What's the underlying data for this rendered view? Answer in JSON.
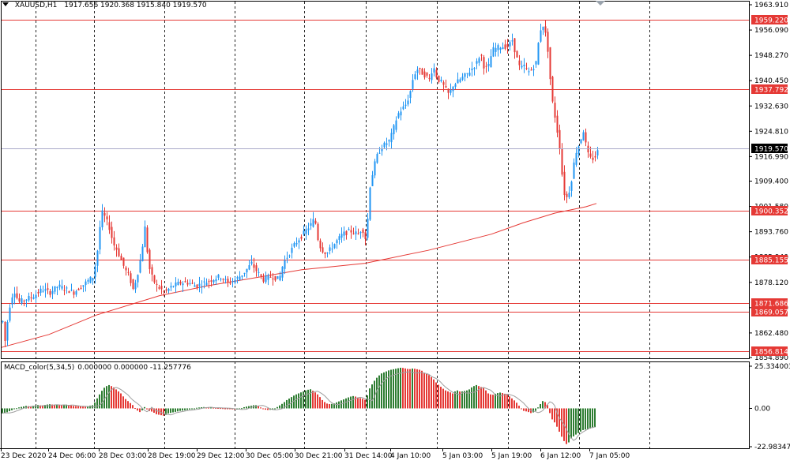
{
  "header": {
    "symbol": "XAUUSD,H1",
    "values": "1917.656 1920.368 1915.840 1919.570"
  },
  "macd": {
    "name": "MACD_color(5,34,5)",
    "values": "0.000000 0.000000 -11.257776",
    "axis_ticks": [
      "25.334003",
      "0.00",
      "-22.983471"
    ]
  },
  "colors": {
    "bull": "#2196f3",
    "bear": "#e53935",
    "level": "#e53935",
    "ma": "#e53935",
    "current_price_line": "#a9a9c8",
    "current_price_tag_bg": "#000000",
    "macd_up": "#2e7d32",
    "macd_down": "#e53935",
    "macd_signal": "#9e9e9e",
    "grid": "#000000"
  },
  "chart_data": {
    "type": "candlestick",
    "symbol": "XAUUSD",
    "timeframe": "H1",
    "ylim": [
      1854.89,
      1963.91
    ],
    "price_ticks": [
      "1963.910",
      "1956.090",
      "1948.270",
      "1940.450",
      "1932.630",
      "1924.810",
      "1916.990",
      "1909.400",
      "1901.580",
      "1893.760",
      "1885.940",
      "1878.120",
      "1870.300",
      "1862.480",
      "1854.890"
    ],
    "x_labels": [
      "23 Dec 2020",
      "24 Dec 06:00",
      "28 Dec 03:00",
      "28 Dec 19:00",
      "29 Dec 12:00",
      "30 Dec 05:00",
      "30 Dec 21:00",
      "31 Dec 14:00",
      "4 Jan 10:00",
      "5 Jan 03:00",
      "5 Jan 19:00",
      "6 Jan 12:00",
      "7 Jan 05:00"
    ],
    "horizontal_levels": [
      {
        "label": "1959.220",
        "value": 1959.22
      },
      {
        "label": "1937.792",
        "value": 1937.792
      },
      {
        "label": "1900.352",
        "value": 1900.352
      },
      {
        "label": "1885.155",
        "value": 1885.155
      },
      {
        "label": "1871.686",
        "value": 1871.686
      },
      {
        "label": "1869.057",
        "value": 1869.057
      },
      {
        "label": "1856.814",
        "value": 1856.814
      }
    ],
    "current_price": {
      "label": "1919.570",
      "value": 1919.57
    },
    "moving_average": {
      "color": "red",
      "points": [
        [
          0,
          1858.0
        ],
        [
          60,
          1862.0
        ],
        [
          120,
          1868.0
        ],
        [
          200,
          1874.0
        ],
        [
          260,
          1877.0
        ],
        [
          320,
          1879.5
        ],
        [
          380,
          1882.0
        ],
        [
          420,
          1883.0
        ],
        [
          460,
          1884.0
        ],
        [
          540,
          1888.0
        ],
        [
          620,
          1893.0
        ],
        [
          660,
          1896.5
        ],
        [
          700,
          1899.5
        ],
        [
          740,
          1901.5
        ],
        [
          753,
          1902.5
        ]
      ]
    },
    "close_path": [
      [
        0,
        1866
      ],
      [
        3,
        1860
      ],
      [
        8,
        1870
      ],
      [
        14,
        1876
      ],
      [
        20,
        1872
      ],
      [
        30,
        1873
      ],
      [
        40,
        1874
      ],
      [
        50,
        1876
      ],
      [
        60,
        1875
      ],
      [
        70,
        1877
      ],
      [
        80,
        1876
      ],
      [
        90,
        1875
      ],
      [
        100,
        1877
      ],
      [
        110,
        1879
      ],
      [
        115,
        1880
      ],
      [
        120,
        1888
      ],
      [
        125,
        1900
      ],
      [
        130,
        1898
      ],
      [
        135,
        1895
      ],
      [
        140,
        1890
      ],
      [
        145,
        1888
      ],
      [
        150,
        1885
      ],
      [
        155,
        1882
      ],
      [
        160,
        1880
      ],
      [
        165,
        1876
      ],
      [
        170,
        1880
      ],
      [
        175,
        1886
      ],
      [
        180,
        1895
      ],
      [
        185,
        1883
      ],
      [
        190,
        1879
      ],
      [
        195,
        1877
      ],
      [
        200,
        1876
      ],
      [
        205,
        1875
      ],
      [
        215,
        1877
      ],
      [
        225,
        1878
      ],
      [
        235,
        1878
      ],
      [
        245,
        1877
      ],
      [
        255,
        1878
      ],
      [
        265,
        1879
      ],
      [
        275,
        1880
      ],
      [
        285,
        1878
      ],
      [
        295,
        1879
      ],
      [
        305,
        1881
      ],
      [
        315,
        1884
      ],
      [
        320,
        1882
      ],
      [
        330,
        1879
      ],
      [
        340,
        1880
      ],
      [
        350,
        1879
      ],
      [
        355,
        1884
      ],
      [
        360,
        1886
      ],
      [
        370,
        1890
      ],
      [
        380,
        1893
      ],
      [
        390,
        1896
      ],
      [
        395,
        1898
      ],
      [
        400,
        1890
      ],
      [
        405,
        1888
      ],
      [
        410,
        1887
      ],
      [
        420,
        1890
      ],
      [
        430,
        1893
      ],
      [
        440,
        1894
      ],
      [
        450,
        1893
      ],
      [
        455,
        1895
      ],
      [
        460,
        1891
      ],
      [
        465,
        1908
      ],
      [
        470,
        1914
      ],
      [
        475,
        1918
      ],
      [
        480,
        1920
      ],
      [
        490,
        1922
      ],
      [
        495,
        1926
      ],
      [
        500,
        1930
      ],
      [
        510,
        1933
      ],
      [
        515,
        1936
      ],
      [
        520,
        1942
      ],
      [
        525,
        1944
      ],
      [
        530,
        1943
      ],
      [
        540,
        1941
      ],
      [
        545,
        1945
      ],
      [
        550,
        1941
      ],
      [
        555,
        1940
      ],
      [
        560,
        1938
      ],
      [
        565,
        1936
      ],
      [
        570,
        1939
      ],
      [
        580,
        1941
      ],
      [
        590,
        1943
      ],
      [
        600,
        1946
      ],
      [
        605,
        1949
      ],
      [
        610,
        1944
      ],
      [
        615,
        1945
      ],
      [
        620,
        1950
      ],
      [
        630,
        1951
      ],
      [
        640,
        1951
      ],
      [
        645,
        1953
      ],
      [
        650,
        1948
      ],
      [
        655,
        1944
      ],
      [
        660,
        1945
      ],
      [
        665,
        1943
      ],
      [
        670,
        1944
      ],
      [
        675,
        1946
      ],
      [
        680,
        1956
      ],
      [
        685,
        1958
      ],
      [
        690,
        1950
      ],
      [
        695,
        1935
      ],
      [
        700,
        1928
      ],
      [
        705,
        1920
      ],
      [
        710,
        1906
      ],
      [
        715,
        1904
      ],
      [
        720,
        1910
      ],
      [
        725,
        1918
      ],
      [
        730,
        1921
      ],
      [
        735,
        1925
      ],
      [
        740,
        1918
      ],
      [
        745,
        1916
      ],
      [
        750,
        1917
      ],
      [
        755,
        1919.57
      ]
    ],
    "macd_bars": [
      [
        0,
        -3
      ],
      [
        5,
        -2.5
      ],
      [
        10,
        -1.5
      ],
      [
        15,
        -0.5
      ],
      [
        20,
        0.5
      ],
      [
        25,
        1
      ],
      [
        30,
        1.5
      ],
      [
        35,
        1.2
      ],
      [
        40,
        1.6
      ],
      [
        45,
        2
      ],
      [
        50,
        1.7
      ],
      [
        55,
        2.2
      ],
      [
        60,
        2.5
      ],
      [
        65,
        2.2
      ],
      [
        70,
        2.4
      ],
      [
        75,
        2
      ],
      [
        80,
        2.3
      ],
      [
        85,
        2
      ],
      [
        90,
        1.5
      ],
      [
        95,
        1.4
      ],
      [
        100,
        1.2
      ],
      [
        105,
        1
      ],
      [
        110,
        1.5
      ],
      [
        115,
        2
      ],
      [
        120,
        6
      ],
      [
        125,
        10
      ],
      [
        130,
        13
      ],
      [
        135,
        14
      ],
      [
        140,
        13
      ],
      [
        145,
        11
      ],
      [
        150,
        9
      ],
      [
        155,
        6
      ],
      [
        160,
        4
      ],
      [
        165,
        2
      ],
      [
        170,
        -1
      ],
      [
        175,
        -2.5
      ],
      [
        180,
        0.8
      ],
      [
        185,
        -1.5
      ],
      [
        190,
        -2
      ],
      [
        195,
        -3.5
      ],
      [
        200,
        -4
      ],
      [
        205,
        -4.5
      ],
      [
        210,
        -3
      ],
      [
        215,
        -2.5
      ],
      [
        220,
        -2
      ],
      [
        225,
        -1.5
      ],
      [
        230,
        -1.2
      ],
      [
        235,
        -0.8
      ],
      [
        240,
        -0.5
      ],
      [
        245,
        0.3
      ],
      [
        250,
        0.6
      ],
      [
        255,
        0.8
      ],
      [
        260,
        0.4
      ],
      [
        265,
        0.5
      ],
      [
        270,
        0.3
      ],
      [
        275,
        0.2
      ],
      [
        280,
        0.1
      ],
      [
        285,
        -0.2
      ],
      [
        290,
        -0.5
      ],
      [
        295,
        -0.8
      ],
      [
        300,
        -0.6
      ],
      [
        305,
        0.6
      ],
      [
        310,
        1.2
      ],
      [
        315,
        1.6
      ],
      [
        320,
        2.1
      ],
      [
        325,
        1.2
      ],
      [
        330,
        -0.4
      ],
      [
        335,
        -1
      ],
      [
        340,
        -0.8
      ],
      [
        345,
        -0.2
      ],
      [
        350,
        1.5
      ],
      [
        355,
        3
      ],
      [
        360,
        5
      ],
      [
        365,
        6.5
      ],
      [
        370,
        8
      ],
      [
        375,
        9
      ],
      [
        380,
        10
      ],
      [
        385,
        11
      ],
      [
        390,
        11.5
      ],
      [
        395,
        10
      ],
      [
        400,
        8
      ],
      [
        405,
        5
      ],
      [
        410,
        3
      ],
      [
        415,
        2.5
      ],
      [
        420,
        3
      ],
      [
        425,
        4
      ],
      [
        430,
        5
      ],
      [
        435,
        6
      ],
      [
        440,
        7
      ],
      [
        445,
        7.5
      ],
      [
        450,
        6.5
      ],
      [
        455,
        6
      ],
      [
        460,
        5
      ],
      [
        465,
        12
      ],
      [
        470,
        16
      ],
      [
        475,
        19
      ],
      [
        480,
        21
      ],
      [
        485,
        22
      ],
      [
        490,
        23
      ],
      [
        495,
        23.5
      ],
      [
        500,
        24
      ],
      [
        505,
        24.5
      ],
      [
        510,
        24
      ],
      [
        515,
        23.5
      ],
      [
        520,
        24
      ],
      [
        525,
        23.5
      ],
      [
        530,
        23
      ],
      [
        535,
        21
      ],
      [
        540,
        20
      ],
      [
        545,
        18
      ],
      [
        550,
        15
      ],
      [
        555,
        13
      ],
      [
        560,
        11
      ],
      [
        565,
        10
      ],
      [
        570,
        9
      ],
      [
        575,
        11
      ],
      [
        580,
        10
      ],
      [
        585,
        10.5
      ],
      [
        590,
        11
      ],
      [
        595,
        13
      ],
      [
        600,
        14
      ],
      [
        605,
        13
      ],
      [
        610,
        12
      ],
      [
        615,
        9
      ],
      [
        620,
        8
      ],
      [
        625,
        9
      ],
      [
        630,
        9.5
      ],
      [
        635,
        9
      ],
      [
        640,
        8
      ],
      [
        645,
        6
      ],
      [
        650,
        4
      ],
      [
        655,
        1
      ],
      [
        660,
        -1.5
      ],
      [
        665,
        -2
      ],
      [
        670,
        -3
      ],
      [
        675,
        -1.5
      ],
      [
        680,
        2
      ],
      [
        685,
        5
      ],
      [
        690,
        2
      ],
      [
        695,
        -6
      ],
      [
        700,
        -9
      ],
      [
        705,
        -14
      ],
      [
        710,
        -19
      ],
      [
        715,
        -22
      ],
      [
        720,
        -18
      ],
      [
        725,
        -16
      ],
      [
        730,
        -14.5
      ],
      [
        735,
        -13
      ],
      [
        740,
        -12.5
      ],
      [
        745,
        -12
      ],
      [
        750,
        -11.26
      ]
    ],
    "macd_ylim": [
      -22.983471,
      25.334003
    ]
  }
}
